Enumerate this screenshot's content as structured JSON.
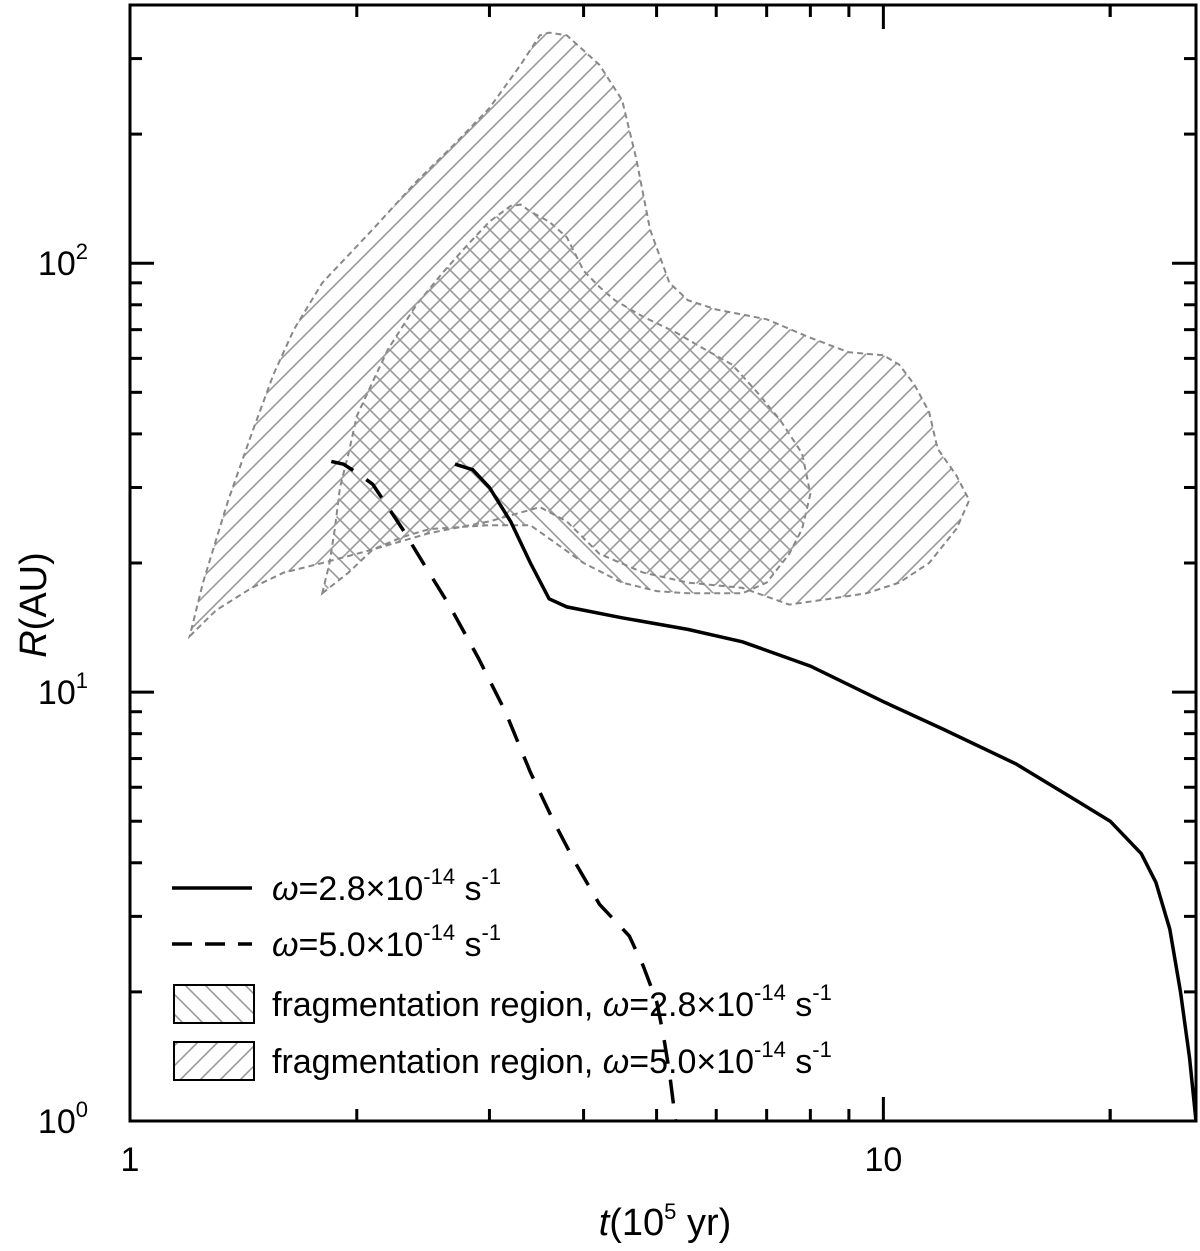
{
  "chart_data": {
    "type": "line",
    "xlabel": {
      "var": "t",
      "open": "(10",
      "exp": "5",
      "unit": " yr)"
    },
    "ylabel": {
      "var": "R",
      "unit": "(AU)"
    },
    "x_scale": "log",
    "y_scale": "log",
    "xlim": [
      1,
      26
    ],
    "ylim": [
      1,
      400
    ],
    "x_ticks": [
      {
        "value": 1,
        "label": "1"
      },
      {
        "value": 10,
        "label": "10"
      }
    ],
    "y_ticks": [
      {
        "value": 1,
        "base": "10",
        "exp": "0"
      },
      {
        "value": 10,
        "base": "10",
        "exp": "1"
      },
      {
        "value": 100,
        "base": "10",
        "exp": "2"
      }
    ],
    "grid": false,
    "legend_position": "bottom-left",
    "series": [
      {
        "id": "solid",
        "style": "solid",
        "label": {
          "pre": "=2.8×10",
          "exp": "-14",
          "post": " s",
          "exp2": "-1"
        },
        "points": [
          [
            2.7,
            34
          ],
          [
            2.85,
            33
          ],
          [
            3.0,
            30
          ],
          [
            3.2,
            25
          ],
          [
            3.4,
            20
          ],
          [
            3.6,
            16.5
          ],
          [
            3.8,
            15.8
          ],
          [
            4.5,
            14.9
          ],
          [
            5.5,
            14.0
          ],
          [
            6.5,
            13.1
          ],
          [
            8,
            11.5
          ],
          [
            10,
            9.5
          ],
          [
            12,
            8.2
          ],
          [
            15,
            6.8
          ],
          [
            18,
            5.6
          ],
          [
            20,
            5.0
          ],
          [
            22,
            4.2
          ],
          [
            23,
            3.6
          ],
          [
            24,
            2.8
          ],
          [
            24.8,
            2.0
          ],
          [
            25.5,
            1.4
          ],
          [
            26,
            1.0
          ]
        ]
      },
      {
        "id": "dashed",
        "style": "dashed",
        "label": {
          "pre": "=5.0×10",
          "exp": "-14",
          "post": " s",
          "exp2": "-1"
        },
        "points": [
          [
            1.85,
            34.5
          ],
          [
            1.92,
            34
          ],
          [
            2.0,
            32.5
          ],
          [
            2.1,
            30.5
          ],
          [
            2.2,
            27
          ],
          [
            2.3,
            24
          ],
          [
            2.45,
            20
          ],
          [
            2.65,
            16
          ],
          [
            2.9,
            12
          ],
          [
            3.15,
            9
          ],
          [
            3.4,
            6.5
          ],
          [
            3.65,
            5
          ],
          [
            3.9,
            4
          ],
          [
            4.2,
            3.2
          ],
          [
            4.6,
            2.7
          ],
          [
            4.8,
            2.3
          ],
          [
            5.0,
            1.9
          ],
          [
            5.1,
            1.6
          ],
          [
            5.2,
            1.3
          ],
          [
            5.3,
            1.0
          ]
        ]
      }
    ],
    "regions": [
      {
        "id": "frag-2.8",
        "hatch": "back",
        "label": {
          "pre": "fragmentation region, ",
          "mid": "=2.8×10",
          "exp": "-14",
          "post": " s",
          "exp2": "-1"
        },
        "outline": [
          [
            1.8,
            17
          ],
          [
            1.95,
            19
          ],
          [
            2.1,
            21.5
          ],
          [
            2.3,
            23
          ],
          [
            2.5,
            24
          ],
          [
            3.0,
            24.5
          ],
          [
            3.4,
            24.5
          ],
          [
            4.0,
            20
          ],
          [
            4.5,
            18
          ],
          [
            5.0,
            17.2
          ],
          [
            5.5,
            17
          ],
          [
            6.5,
            17
          ],
          [
            7.0,
            18
          ],
          [
            7.5,
            21
          ],
          [
            7.8,
            24
          ],
          [
            8.0,
            29
          ],
          [
            7.8,
            36
          ],
          [
            7.3,
            43
          ],
          [
            6.8,
            50
          ],
          [
            6.3,
            58
          ],
          [
            5.7,
            64
          ],
          [
            5.3,
            69
          ],
          [
            4.8,
            75
          ],
          [
            4.4,
            82
          ],
          [
            4.2,
            88
          ],
          [
            4.0,
            96
          ],
          [
            3.9,
            105
          ],
          [
            3.8,
            115
          ],
          [
            3.6,
            125
          ],
          [
            3.4,
            132
          ],
          [
            3.3,
            137
          ],
          [
            3.2,
            136
          ],
          [
            3.0,
            125
          ],
          [
            2.8,
            110
          ],
          [
            2.6,
            95
          ],
          [
            2.4,
            80
          ],
          [
            2.2,
            63
          ],
          [
            2.1,
            53
          ],
          [
            2.0,
            44
          ],
          [
            1.95,
            36
          ],
          [
            1.9,
            30
          ],
          [
            1.87,
            24
          ],
          [
            1.84,
            20
          ]
        ]
      },
      {
        "id": "frag-5.0",
        "hatch": "forward",
        "label": {
          "pre": "fragmentation region, ",
          "mid": "=5.0×10",
          "exp": "-14",
          "post": " s",
          "exp2": "-1"
        },
        "outline": [
          [
            1.2,
            13.5
          ],
          [
            1.3,
            15.5
          ],
          [
            1.45,
            17.5
          ],
          [
            1.6,
            19
          ],
          [
            1.8,
            20
          ],
          [
            2.1,
            21.5
          ],
          [
            2.5,
            23.5
          ],
          [
            3.0,
            25
          ],
          [
            3.5,
            27
          ],
          [
            3.8,
            25
          ],
          [
            4.2,
            21
          ],
          [
            4.8,
            19
          ],
          [
            5.5,
            18
          ],
          [
            6.5,
            17.5
          ],
          [
            7.5,
            16
          ],
          [
            8.5,
            16.5
          ],
          [
            9.5,
            17
          ],
          [
            10.5,
            18
          ],
          [
            11.5,
            20
          ],
          [
            12.5,
            24
          ],
          [
            13,
            28
          ],
          [
            12.5,
            32
          ],
          [
            11.8,
            37
          ],
          [
            11.5,
            45
          ],
          [
            11,
            52
          ],
          [
            10.5,
            58
          ],
          [
            10,
            61
          ],
          [
            9,
            62
          ],
          [
            8,
            67
          ],
          [
            7,
            74
          ],
          [
            6,
            78
          ],
          [
            5.5,
            82
          ],
          [
            5.2,
            90
          ],
          [
            4.9,
            120
          ],
          [
            4.7,
            175
          ],
          [
            4.5,
            240
          ],
          [
            4.2,
            290
          ],
          [
            3.8,
            340
          ],
          [
            3.6,
            345
          ],
          [
            3.5,
            340
          ],
          [
            3.3,
            290
          ],
          [
            3.0,
            230
          ],
          [
            2.7,
            190
          ],
          [
            2.4,
            155
          ],
          [
            2.1,
            120
          ],
          [
            1.8,
            90
          ],
          [
            1.65,
            70
          ],
          [
            1.55,
            55
          ],
          [
            1.45,
            40
          ],
          [
            1.35,
            28
          ],
          [
            1.25,
            18
          ]
        ]
      }
    ]
  }
}
